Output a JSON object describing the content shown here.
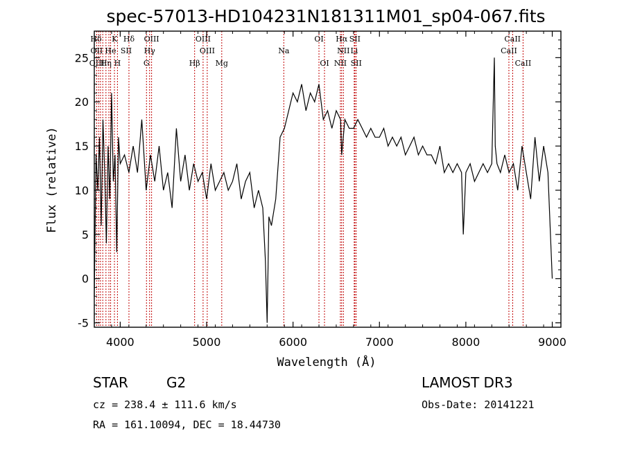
{
  "chart_data": {
    "type": "line",
    "title": "spec-57013-HD104231N181311M01_sp04-067.fits",
    "xlabel": "Wavelength (Å)",
    "ylabel": "Flux (relative)",
    "xlim": [
      3700,
      9100
    ],
    "ylim": [
      -5.5,
      28
    ],
    "xticks": [
      4000,
      5000,
      6000,
      7000,
      8000,
      9000
    ],
    "yticks": [
      -5,
      0,
      5,
      10,
      15,
      20,
      25
    ],
    "grid": false,
    "series": [
      {
        "x": [
          3700,
          3720,
          3740,
          3760,
          3780,
          3800,
          3820,
          3840,
          3860,
          3880,
          3900,
          3920,
          3940,
          3960,
          3980,
          4000,
          4050,
          4100,
          4150,
          4200,
          4250,
          4300,
          4350,
          4400,
          4450,
          4500,
          4550,
          4600,
          4650,
          4700,
          4750,
          4800,
          4850,
          4900,
          4950,
          5000,
          5050,
          5100,
          5150,
          5200,
          5250,
          5300,
          5350,
          5400,
          5450,
          5500,
          5550,
          5600,
          5650,
          5680,
          5700,
          5720,
          5750,
          5800,
          5850,
          5900,
          5950,
          6000,
          6050,
          6100,
          6150,
          6200,
          6250,
          6300,
          6350,
          6400,
          6450,
          6500,
          6550,
          6563,
          6600,
          6650,
          6700,
          6750,
          6800,
          6850,
          6900,
          6950,
          7000,
          7050,
          7100,
          7150,
          7200,
          7250,
          7300,
          7350,
          7400,
          7450,
          7500,
          7550,
          7600,
          7650,
          7700,
          7750,
          7800,
          7850,
          7900,
          7950,
          7970,
          8000,
          8050,
          8100,
          8150,
          8200,
          8250,
          8300,
          8330,
          8340,
          8360,
          8400,
          8450,
          8500,
          8550,
          8600,
          8650,
          8700,
          8750,
          8800,
          8850,
          8900,
          8950,
          9000
        ],
        "y": [
          -2,
          14,
          10,
          16,
          6,
          18,
          12,
          4,
          15,
          9,
          21,
          11,
          14,
          3,
          16,
          13,
          14,
          12,
          15,
          12,
          18,
          10,
          14,
          11,
          15,
          10,
          12,
          8,
          17,
          11,
          14,
          10,
          13,
          11,
          12,
          9,
          13,
          10,
          11,
          12,
          10,
          11,
          13,
          9,
          11,
          12,
          8,
          10,
          8,
          2,
          -5,
          7,
          6,
          9,
          16,
          17,
          19,
          21,
          20,
          22,
          19,
          21,
          20,
          22,
          18,
          19,
          17,
          19,
          18,
          14,
          18,
          17,
          17,
          18,
          17,
          16,
          17,
          16,
          16,
          17,
          15,
          16,
          15,
          16,
          14,
          15,
          16,
          14,
          15,
          14,
          14,
          13,
          15,
          12,
          13,
          12,
          13,
          12,
          5,
          12,
          13,
          11,
          12,
          13,
          12,
          13,
          25,
          15,
          13,
          12,
          14,
          12,
          13,
          10,
          15,
          12,
          9,
          16,
          11,
          15,
          12,
          0
        ]
      }
    ],
    "line_labels": [
      {
        "text": "Hδ",
        "x": 3720,
        "row": 1
      },
      {
        "text": "K",
        "x": 3935,
        "row": 1
      },
      {
        "text": "Hδ",
        "x": 4101,
        "row": 1
      },
      {
        "text": "OIII",
        "x": 4363,
        "row": 1
      },
      {
        "text": "OIII",
        "x": 4959,
        "row": 1
      },
      {
        "text": "OI",
        "x": 6300,
        "row": 1
      },
      {
        "text": "Hα",
        "x": 6563,
        "row": 1
      },
      {
        "text": "SII",
        "x": 6716,
        "row": 1
      },
      {
        "text": "CaII",
        "x": 8540,
        "row": 1
      },
      {
        "text": "OII",
        "x": 3727,
        "row": 2
      },
      {
        "text": "He",
        "x": 3888,
        "row": 2
      },
      {
        "text": "SII",
        "x": 4069,
        "row": 2
      },
      {
        "text": "Hγ",
        "x": 4340,
        "row": 2
      },
      {
        "text": "OIII",
        "x": 5007,
        "row": 2
      },
      {
        "text": "Na",
        "x": 5893,
        "row": 2
      },
      {
        "text": "NII",
        "x": 6583,
        "row": 2
      },
      {
        "text": "Li",
        "x": 6708,
        "row": 2
      },
      {
        "text": "CaII",
        "x": 8498,
        "row": 2
      },
      {
        "text": "OIII",
        "x": 3730,
        "row": 3
      },
      {
        "text": "Hη",
        "x": 3835,
        "row": 3
      },
      {
        "text": "H",
        "x": 3968,
        "row": 3
      },
      {
        "text": "G",
        "x": 4304,
        "row": 3
      },
      {
        "text": "Hβ",
        "x": 4861,
        "row": 3
      },
      {
        "text": "Mg",
        "x": 5175,
        "row": 3
      },
      {
        "text": "OI",
        "x": 6364,
        "row": 3
      },
      {
        "text": "NII",
        "x": 6548,
        "row": 3
      },
      {
        "text": "SII",
        "x": 6731,
        "row": 3
      },
      {
        "text": "CaII",
        "x": 8662,
        "row": 3
      }
    ],
    "line_markers": [
      3727,
      3750,
      3771,
      3798,
      3835,
      3869,
      3889,
      3933,
      3968,
      4101,
      4304,
      4340,
      4363,
      4861,
      4959,
      5007,
      5175,
      5893,
      6300,
      6364,
      6548,
      6563,
      6583,
      6708,
      6716,
      6731,
      8498,
      8542,
      8662
    ]
  },
  "info": {
    "class_label": "STAR",
    "subclass": "G2",
    "survey": "LAMOST DR3",
    "cz_text": "cz = 238.4 ± 111.6 km/s",
    "obs_date": "Obs-Date: 20141221",
    "coords": "RA = 161.10094, DEC =  18.44730"
  },
  "colors": {
    "line": "#000000",
    "marker": "#c00000",
    "axis": "#000000",
    "background": "#ffffff"
  }
}
